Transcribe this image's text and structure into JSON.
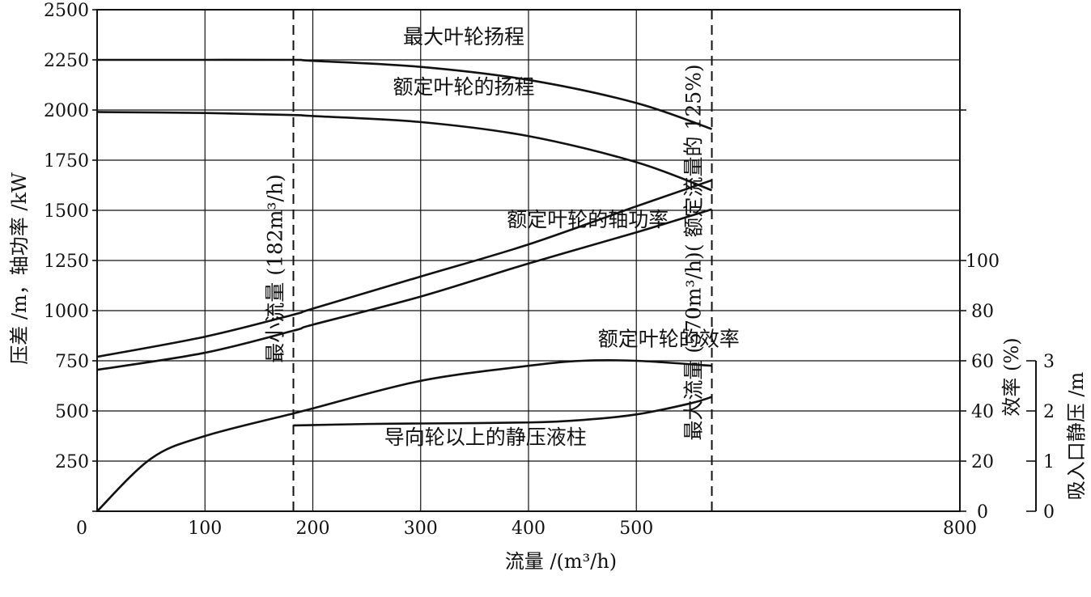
{
  "chart_data": {
    "type": "line",
    "x_axis": {
      "label": "流量 /(m³/h)",
      "range": [
        0,
        800
      ],
      "ticks": [
        0,
        100,
        200,
        300,
        400,
        500,
        800
      ]
    },
    "y_axes": {
      "left": {
        "label": "压差 /m，轴功率 /kW",
        "range": [
          0,
          2500
        ],
        "ticks": [
          0,
          250,
          500,
          750,
          1000,
          1250,
          1500,
          1750,
          2000,
          2250,
          2500
        ]
      },
      "efficiency": {
        "label": "效率 (%)",
        "range": [
          0,
          100
        ],
        "ticks": [
          0,
          20,
          40,
          60,
          80,
          100
        ]
      },
      "suction": {
        "label": "吸入口静压 /m",
        "range": [
          0,
          3
        ],
        "ticks": [
          0,
          1,
          2,
          3
        ]
      }
    },
    "grid": true,
    "reference_lines": [
      {
        "x": 182,
        "label": "最小流量 (182m³/h)"
      },
      {
        "x": 570,
        "label": "最大流量 (570m³/h)( 额定流量的 125%)"
      }
    ],
    "series": [
      {
        "name": "最大叶轮扬程",
        "axis": "left",
        "x": [
          0,
          100,
          182,
          200,
          300,
          400,
          500,
          570
        ],
        "y": [
          2250,
          2250,
          2250,
          2245,
          2215,
          2150,
          2035,
          1905
        ]
      },
      {
        "name": "额定叶轮的扬程",
        "axis": "left",
        "x": [
          0,
          100,
          182,
          200,
          300,
          400,
          500,
          570
        ],
        "y": [
          1990,
          1985,
          1975,
          1970,
          1940,
          1870,
          1740,
          1600
        ]
      },
      {
        "name": "",
        "axis": "left",
        "x": [
          0,
          100,
          182,
          200,
          300,
          400,
          500,
          570
        ],
        "y": [
          770,
          870,
          980,
          1010,
          1170,
          1330,
          1520,
          1650
        ]
      },
      {
        "name": "额定叶轮的轴功率",
        "axis": "left",
        "x": [
          0,
          100,
          182,
          200,
          300,
          400,
          500,
          570
        ],
        "y": [
          705,
          790,
          900,
          930,
          1070,
          1235,
          1390,
          1505
        ]
      },
      {
        "name": "额定叶轮的效率",
        "axis": "efficiency",
        "x": [
          0,
          50,
          100,
          182,
          200,
          300,
          400,
          450,
          500,
          570
        ],
        "y": [
          0,
          21,
          30,
          39,
          41,
          52,
          58,
          60,
          60,
          58
        ]
      },
      {
        "name": "导向轮以上的静压液柱",
        "axis": "suction",
        "x": [
          182,
          250,
          300,
          400,
          450,
          500,
          550,
          570
        ],
        "y": [
          1.71,
          1.74,
          1.75,
          1.77,
          1.82,
          1.93,
          2.15,
          2.28
        ]
      }
    ],
    "annotations": [
      {
        "text": "最大叶轮扬程",
        "near_x": 340,
        "near_y": 2330
      },
      {
        "text": "额定叶轮的扬程",
        "near_x": 340,
        "near_y": 2080
      },
      {
        "text": "额定叶轮的轴功率",
        "near_x": 455,
        "near_y": 1420
      },
      {
        "text": "额定叶轮的效率",
        "near_x": 530,
        "near_y": 825
      },
      {
        "text": "导向轮以上的静压液柱",
        "near_x": 360,
        "near_y": 335
      }
    ]
  }
}
